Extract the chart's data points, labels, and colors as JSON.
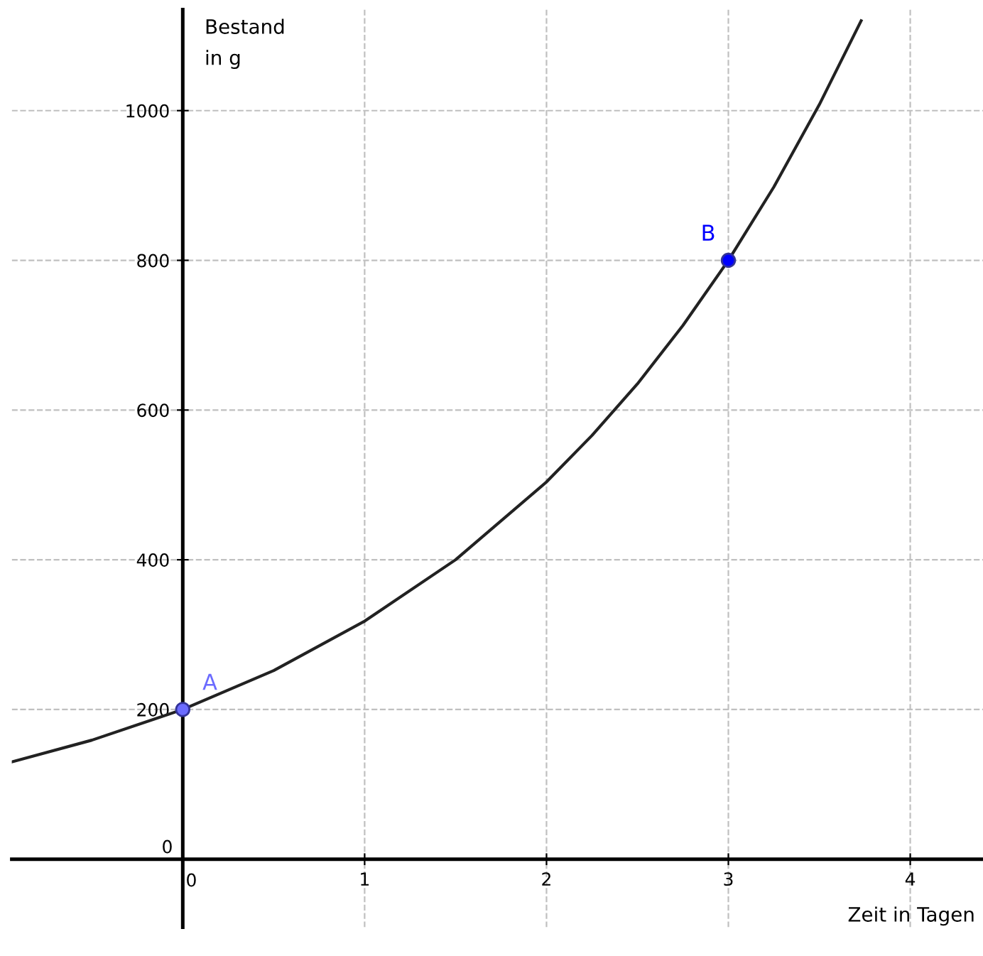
{
  "chart_data": {
    "type": "line",
    "xlabel": "Zeit in Tagen",
    "ylabel": "Bestand\nin g",
    "xlim": [
      -0.94,
      4.4
    ],
    "ylim": [
      -91,
      1135
    ],
    "xticks": [
      0,
      1,
      2,
      3,
      4
    ],
    "yticks": [
      0,
      200,
      400,
      600,
      800,
      1000
    ],
    "grid": true,
    "series": [
      {
        "color": "#222222",
        "x": [
          -0.94,
          -0.5,
          0,
          0.5,
          1,
          1.5,
          2,
          2.25,
          2.5,
          2.75,
          3,
          3.25,
          3.5,
          3.73
        ],
        "values": [
          130,
          159,
          200,
          252,
          318,
          400,
          504,
          566,
          635,
          713,
          800,
          898,
          1008,
          1120
        ]
      },
      {
        "type": "scatter",
        "name": "A",
        "color": "#6b6bff",
        "x": [
          0
        ],
        "values": [
          200
        ]
      },
      {
        "type": "scatter",
        "name": "B",
        "color": "#0000ff",
        "x": [
          3
        ],
        "values": [
          800
        ]
      }
    ]
  }
}
